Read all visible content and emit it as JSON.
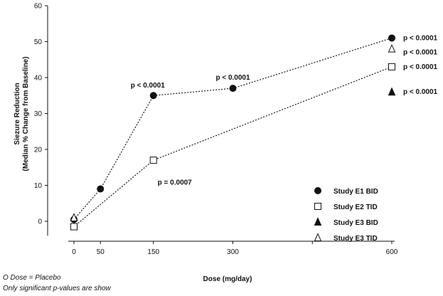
{
  "chart_data": {
    "type": "scatter",
    "title": "",
    "xlabel": "Dose (mg/day)",
    "ylabel_line1": "Siezure Reduction",
    "ylabel_line2": "(Median % Change from Baseline)",
    "xlim": [
      -5,
      620
    ],
    "ylim": [
      -4,
      60
    ],
    "x_ticks": [
      0,
      50,
      150,
      300,
      600
    ],
    "y_ticks": [
      0,
      10,
      20,
      30,
      40,
      50,
      60
    ],
    "series": [
      {
        "name": "Study E1 BID",
        "marker": "filled-circle",
        "connected": true,
        "points": [
          {
            "x": 0,
            "y": 0.5
          },
          {
            "x": 50,
            "y": 9
          },
          {
            "x": 150,
            "y": 35
          },
          {
            "x": 300,
            "y": 37
          },
          {
            "x": 600,
            "y": 51
          }
        ]
      },
      {
        "name": "Study E2 TID",
        "marker": "open-square",
        "connected": true,
        "points": [
          {
            "x": 0,
            "y": -1.5
          },
          {
            "x": 150,
            "y": 17
          },
          {
            "x": 600,
            "y": 43
          }
        ]
      },
      {
        "name": "Study E3 BID",
        "marker": "filled-triangle",
        "connected": false,
        "points": [
          {
            "x": 600,
            "y": 36
          }
        ]
      },
      {
        "name": "Study E3 TID",
        "marker": "open-triangle",
        "connected": false,
        "points": [
          {
            "x": 0,
            "y": 1
          },
          {
            "x": 600,
            "y": 48
          }
        ]
      }
    ],
    "annotations": [
      {
        "text": "p < 0.0001",
        "x": 150,
        "y": 38
      },
      {
        "text": "p < 0.0001",
        "x": 300,
        "y": 40
      },
      {
        "text": "p = 0.0007",
        "x": 150,
        "y": 11
      },
      {
        "text": "p < 0.0001",
        "x": 600,
        "y": 51
      },
      {
        "text": "p < 0.0001",
        "x": 600,
        "y": 47
      },
      {
        "text": "p < 0.0001",
        "x": 600,
        "y": 43
      },
      {
        "text": "p < 0.0001",
        "x": 600,
        "y": 36
      }
    ],
    "legend_placement": "bottom-right",
    "grid": false,
    "footnotes": [
      "O Dose = Placebo",
      "Only significant p-values are show"
    ],
    "colors": {
      "ink": "#111111",
      "background": "#ffffff"
    }
  }
}
